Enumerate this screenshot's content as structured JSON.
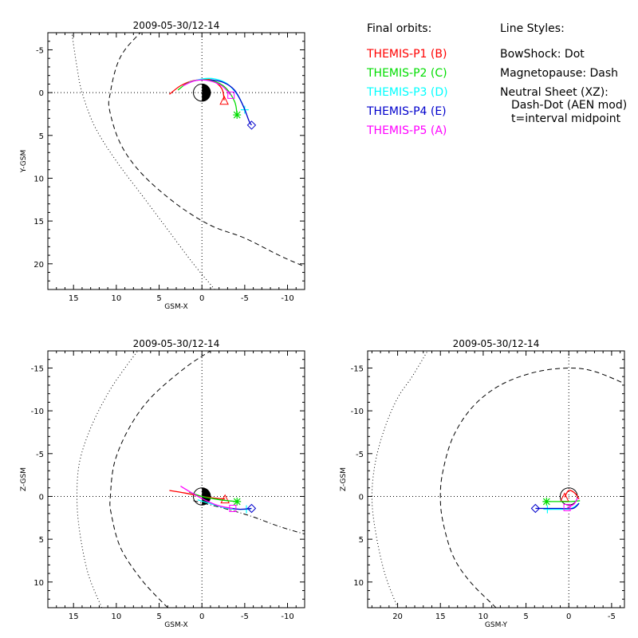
{
  "legend": {
    "orbits_title": "Final orbits:",
    "probes": [
      {
        "label": "THEMIS-P1  (B)",
        "color": "#ff0000"
      },
      {
        "label": "THEMIS-P2  (C)",
        "color": "#00dd00"
      },
      {
        "label": "THEMIS-P3  (D)",
        "color": "#00ffff"
      },
      {
        "label": "THEMIS-P4  (E)",
        "color": "#0000cc"
      },
      {
        "label": "THEMIS-P5  (A)",
        "color": "#ff00ff"
      }
    ],
    "styles_title": "Line Styles:",
    "styles": {
      "bowshock": "BowShock: Dot",
      "magnetopause": "Magnetopause: Dash",
      "neutral_title": "Neutral Sheet (XZ):",
      "neutral_line": "Dash-Dot (AEN mod)",
      "interval": "t=interval midpoint"
    }
  },
  "chart_data": [
    {
      "type": "line",
      "title": "2009-05-30/12-14",
      "xlabel": "GSM-X",
      "ylabel": "Y-GSM",
      "xlim": [
        18,
        -12
      ],
      "ylim": [
        -7,
        23
      ],
      "xticks": [
        15,
        10,
        5,
        0,
        -5,
        -10
      ],
      "yticks": [
        -5,
        0,
        5,
        10,
        15,
        20
      ],
      "bowshock": [
        [
          -1.5,
          23
        ],
        [
          1,
          20
        ],
        [
          4,
          16
        ],
        [
          7,
          12
        ],
        [
          10,
          8
        ],
        [
          12.5,
          4
        ],
        [
          14,
          0
        ],
        [
          14.6,
          -3
        ],
        [
          15.2,
          -7
        ]
      ],
      "magnetopause": [
        [
          -11.7,
          20.2
        ],
        [
          -9,
          19
        ],
        [
          -5,
          17
        ],
        [
          -1,
          15.5
        ],
        [
          3,
          13
        ],
        [
          7,
          9.5
        ],
        [
          9.5,
          6
        ],
        [
          10.8,
          2
        ],
        [
          10.7,
          0
        ],
        [
          10,
          -3
        ],
        [
          9,
          -5
        ],
        [
          7.2,
          -7
        ]
      ],
      "series": [
        {
          "name": "THEMIS-P1  (B)",
          "color": "#ff0000",
          "points": [
            [
              3.8,
              0.2
            ],
            [
              2.5,
              -0.8
            ],
            [
              1,
              -1.4
            ],
            [
              -1,
              -1.5
            ],
            [
              -2.3,
              -0.5
            ],
            [
              -2.6,
              0.9
            ]
          ],
          "marker": "triangle"
        },
        {
          "name": "THEMIS-P2  (C)",
          "color": "#00dd00",
          "points": [
            [
              2.8,
              -0.3
            ],
            [
              1.5,
              -1.2
            ],
            [
              -0.5,
              -1.5
            ],
            [
              -2.5,
              -0.8
            ],
            [
              -3.8,
              1
            ],
            [
              -4.1,
              2.6
            ]
          ],
          "marker": "star"
        },
        {
          "name": "THEMIS-P3  (D)",
          "color": "#00ffff",
          "points": [
            [
              1.5,
              -1.2
            ],
            [
              0,
              -1.6
            ],
            [
              -1.5,
              -1.6
            ],
            [
              -3,
              -1
            ],
            [
              -4.3,
              0.5
            ],
            [
              -5,
              2
            ]
          ],
          "marker": "plus"
        },
        {
          "name": "THEMIS-P4  (E)",
          "color": "#0000cc",
          "points": [
            [
              -1,
              -1.5
            ],
            [
              -2.5,
              -1.2
            ],
            [
              -3.8,
              -0.3
            ],
            [
              -4.8,
              1.5
            ],
            [
              -5.5,
              3.3
            ],
            [
              -5.8,
              3.8
            ]
          ],
          "marker": "diamond"
        },
        {
          "name": "THEMIS-P5  (A)",
          "color": "#ff00ff",
          "points": [
            [
              2.2,
              -0.8
            ],
            [
              0.8,
              -1.4
            ],
            [
              -0.8,
              -1.4
            ],
            [
              -2.3,
              -0.8
            ],
            [
              -3.4,
              0.3
            ]
          ],
          "marker": "square"
        }
      ]
    },
    {
      "type": "line",
      "title": "2009-05-30/12-14",
      "xlabel": "GSM-X",
      "ylabel": "Z-GSM",
      "xlim": [
        18,
        -12
      ],
      "ylim": [
        -17,
        13
      ],
      "xticks": [
        15,
        10,
        5,
        0,
        -5,
        -10
      ],
      "yticks": [
        -15,
        -10,
        -5,
        0,
        5,
        10
      ],
      "bowshock": [
        [
          11.7,
          13
        ],
        [
          13.3,
          9
        ],
        [
          14.3,
          4
        ],
        [
          14.6,
          0
        ],
        [
          14.3,
          -4
        ],
        [
          13,
          -8
        ],
        [
          11,
          -12
        ],
        [
          9,
          -15
        ],
        [
          7.5,
          -17
        ]
      ],
      "magnetopause": [
        [
          4,
          13
        ],
        [
          7,
          9.8
        ],
        [
          9.5,
          6
        ],
        [
          10.6,
          2
        ],
        [
          10.7,
          0
        ],
        [
          10.2,
          -4
        ],
        [
          8.5,
          -8
        ],
        [
          6,
          -11.5
        ],
        [
          2,
          -15
        ],
        [
          -1,
          -17
        ]
      ],
      "neutral_sheet": [
        [
          1,
          0.5
        ],
        [
          -3,
          1.5
        ],
        [
          -6,
          2.4
        ],
        [
          -9,
          3.5
        ],
        [
          -12,
          4.4
        ]
      ],
      "series": [
        {
          "name": "THEMIS-P1  (B)",
          "color": "#ff0000",
          "points": [
            [
              3.8,
              -0.7
            ],
            [
              2,
              -0.4
            ],
            [
              0,
              0
            ],
            [
              -1.5,
              0.2
            ],
            [
              -2.7,
              0.3
            ]
          ],
          "marker": "triangle"
        },
        {
          "name": "THEMIS-P2  (C)",
          "color": "#00dd00",
          "points": [
            [
              1.5,
              -0.5
            ],
            [
              0,
              0
            ],
            [
              -1.5,
              0.3
            ],
            [
              -3,
              0.5
            ],
            [
              -4.1,
              0.6
            ]
          ],
          "marker": "star"
        },
        {
          "name": "THEMIS-P3  (D)",
          "color": "#00ffff",
          "points": [
            [
              0.5,
              0.4
            ],
            [
              -1.5,
              1
            ],
            [
              -3,
              1.4
            ],
            [
              -4.5,
              1.5
            ],
            [
              -5.2,
              1.5
            ]
          ],
          "marker": "plus"
        },
        {
          "name": "THEMIS-P4  (E)",
          "color": "#0000cc",
          "points": [
            [
              -3.5,
              1.4
            ],
            [
              -4.5,
              1.5
            ],
            [
              -5.8,
              1.4
            ]
          ],
          "marker": "diamond"
        },
        {
          "name": "THEMIS-P5  (A)",
          "color": "#ff00ff",
          "points": [
            [
              2.5,
              -1.2
            ],
            [
              1,
              -0.3
            ],
            [
              -0.5,
              0.5
            ],
            [
              -2,
              1.1
            ],
            [
              -3.6,
              1.4
            ]
          ],
          "marker": "square"
        }
      ]
    },
    {
      "type": "line",
      "title": "2009-05-30/12-14",
      "xlabel": "GSM-Y",
      "ylabel": "Z-GSM",
      "xlim": [
        23.5,
        -6.5
      ],
      "ylim": [
        -17,
        13
      ],
      "xticks": [
        20,
        15,
        10,
        5,
        0,
        -5
      ],
      "yticks": [
        -15,
        -10,
        -5,
        0,
        5,
        10
      ],
      "bowshock": [
        [
          20,
          13
        ],
        [
          21.5,
          9
        ],
        [
          22.6,
          4
        ],
        [
          23,
          0
        ],
        [
          22.6,
          -4
        ],
        [
          21.5,
          -8
        ],
        [
          20,
          -11.5
        ],
        [
          18.3,
          -14
        ],
        [
          16.5,
          -17
        ]
      ],
      "magnetopause": [
        [
          8.5,
          13
        ],
        [
          11.5,
          10
        ],
        [
          13.5,
          7
        ],
        [
          14.7,
          3
        ],
        [
          15,
          0
        ],
        [
          14.7,
          -3
        ],
        [
          13.5,
          -7
        ],
        [
          11.2,
          -10.5
        ],
        [
          8,
          -13
        ],
        [
          4,
          -14.5
        ],
        [
          0,
          -15
        ],
        [
          -3,
          -14.6
        ],
        [
          -6.5,
          -13.2
        ]
      ],
      "series": [
        {
          "name": "THEMIS-P1  (B)",
          "color": "#ff0000",
          "points": [
            [
              -1.2,
              0.3
            ],
            [
              -0.7,
              -0.4
            ],
            [
              0,
              -0.7
            ],
            [
              0.5,
              0.1
            ]
          ],
          "marker": "triangle"
        },
        {
          "name": "THEMIS-P2  (C)",
          "color": "#00dd00",
          "points": [
            [
              -1.3,
              0.5
            ],
            [
              -0.3,
              0.6
            ],
            [
              1,
              0.6
            ],
            [
              2.6,
              0.6
            ]
          ],
          "marker": "star"
        },
        {
          "name": "THEMIS-P3  (D)",
          "color": "#00ffff",
          "points": [
            [
              -1.2,
              0.8
            ],
            [
              -0.3,
              1.4
            ],
            [
              1,
              1.5
            ],
            [
              2.5,
              1.5
            ]
          ],
          "marker": "plus"
        },
        {
          "name": "THEMIS-P4  (E)",
          "color": "#0000cc",
          "points": [
            [
              -1.2,
              0.8
            ],
            [
              -0.5,
              1.4
            ],
            [
              1,
              1.4
            ],
            [
              3,
              1.4
            ],
            [
              3.9,
              1.4
            ]
          ],
          "marker": "diamond"
        },
        {
          "name": "THEMIS-P5  (A)",
          "color": "#ff00ff",
          "points": [
            [
              -1,
              0.2
            ],
            [
              -0.6,
              0.9
            ],
            [
              0.2,
              1.3
            ]
          ],
          "marker": "square"
        }
      ]
    }
  ]
}
